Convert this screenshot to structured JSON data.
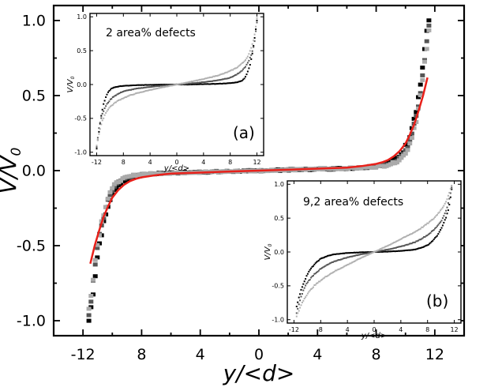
{
  "chart_data": [
    {
      "id": "main",
      "type": "scatter",
      "title": "",
      "xlabel": "y/<d>",
      "ylabel_main": "V/V",
      "ylabel_sub": "0",
      "xlim": [
        -14,
        14
      ],
      "ylim": [
        -1.1,
        1.1
      ],
      "xticks": [
        -12,
        -8,
        -4,
        0,
        4,
        8,
        12
      ],
      "xtick_labels": [
        "-12",
        "8",
        "4",
        "0",
        "4",
        "8",
        "12"
      ],
      "yticks": [
        1.0,
        0.5,
        0.0,
        -0.5,
        -1.0
      ],
      "ytick_labels": [
        "1.0",
        "0.5",
        "0.0",
        "-0.5",
        "-1.0"
      ],
      "series": [
        {
          "name": "black",
          "color": "#000000",
          "noise": 0.035,
          "x": [
            -11.6,
            -11.4,
            -11.2,
            -11.0,
            -10.8,
            -10.5,
            -10.2,
            -9.8,
            -9.4,
            -9.0,
            -8.5,
            -8.0,
            -7.0,
            -6.0,
            -4.0,
            -2.0,
            0.0,
            2.0,
            4.0,
            6.0,
            7.0,
            8.0,
            8.5,
            9.0,
            9.4,
            9.8,
            10.2,
            10.5,
            10.8,
            11.0,
            11.2,
            11.4,
            11.6
          ],
          "y": [
            -1.0,
            -0.88,
            -0.72,
            -0.56,
            -0.44,
            -0.32,
            -0.2,
            -0.12,
            -0.08,
            -0.06,
            -0.04,
            -0.03,
            -0.02,
            -0.015,
            -0.01,
            -0.005,
            0.0,
            0.005,
            0.01,
            0.015,
            0.02,
            0.03,
            0.04,
            0.06,
            0.08,
            0.12,
            0.2,
            0.32,
            0.44,
            0.56,
            0.72,
            0.88,
            1.0
          ]
        },
        {
          "name": "dark gray",
          "color": "#555555",
          "noise": 0.03,
          "x": [
            -11.6,
            -11.4,
            -11.2,
            -11.0,
            -10.8,
            -10.5,
            -10.2,
            -9.8,
            -9.4,
            -9.0,
            -8.5,
            -8.0,
            -7.0,
            -6.0,
            -4.0,
            -2.0,
            0.0,
            2.0,
            4.0,
            6.0,
            7.0,
            8.0,
            8.5,
            9.0,
            9.4,
            9.8,
            10.2,
            10.5,
            10.8,
            11.0,
            11.2,
            11.4,
            11.6
          ],
          "y": [
            -0.96,
            -0.82,
            -0.66,
            -0.5,
            -0.4,
            -0.28,
            -0.17,
            -0.1,
            -0.065,
            -0.05,
            -0.035,
            -0.025,
            -0.02,
            -0.015,
            -0.01,
            -0.005,
            0.0,
            0.005,
            0.01,
            0.015,
            0.02,
            0.03,
            0.035,
            0.05,
            0.065,
            0.1,
            0.17,
            0.28,
            0.4,
            0.5,
            0.66,
            0.82,
            0.96
          ]
        },
        {
          "name": "light gray",
          "color": "#aaaaaa",
          "noise": 0.03,
          "x": [
            -11.6,
            -11.4,
            -11.2,
            -11.0,
            -10.8,
            -10.5,
            -10.2,
            -9.8,
            -9.4,
            -9.0,
            -8.5,
            -8.0,
            -7.0,
            -6.0,
            -4.0,
            -2.0,
            0.0,
            2.0,
            4.0,
            6.0,
            7.0,
            8.0,
            8.5,
            9.0,
            9.4,
            9.8,
            10.2,
            10.5,
            10.8,
            11.0,
            11.2,
            11.4,
            11.6
          ],
          "y": [
            -0.92,
            -0.78,
            -0.62,
            -0.48,
            -0.37,
            -0.25,
            -0.15,
            -0.09,
            -0.06,
            -0.045,
            -0.03,
            -0.025,
            -0.02,
            -0.015,
            -0.01,
            -0.005,
            0.0,
            0.005,
            0.01,
            0.015,
            0.02,
            0.025,
            0.03,
            0.045,
            0.06,
            0.09,
            0.15,
            0.25,
            0.37,
            0.48,
            0.62,
            0.78,
            0.92
          ]
        },
        {
          "name": "fit",
          "color": "#e8201a",
          "kind": "line",
          "x": [
            -11.5,
            -11.2,
            -10.9,
            -10.6,
            -10.3,
            -10.0,
            -9.6,
            -9.2,
            -8.8,
            -8.4,
            -8.0,
            -7.0,
            -6.0,
            -4.0,
            -2.0,
            0.0,
            2.0,
            4.0,
            6.0,
            7.0,
            8.0,
            8.4,
            8.8,
            9.2,
            9.6,
            10.0,
            10.3,
            10.6,
            10.9,
            11.2,
            11.5
          ],
          "y": [
            -0.62,
            -0.5,
            -0.4,
            -0.31,
            -0.24,
            -0.18,
            -0.13,
            -0.095,
            -0.07,
            -0.055,
            -0.045,
            -0.03,
            -0.02,
            -0.013,
            -0.006,
            0.0,
            0.006,
            0.013,
            0.02,
            0.03,
            0.045,
            0.055,
            0.07,
            0.095,
            0.13,
            0.18,
            0.24,
            0.31,
            0.4,
            0.5,
            0.62
          ]
        }
      ]
    },
    {
      "id": "inset-a",
      "type": "scatter",
      "annotation": "2 area% defects",
      "panel_label": "(a)",
      "xlabel": "y/<d>",
      "ylabel_main": "V/V",
      "ylabel_sub": "0",
      "xlim": [
        -13,
        13
      ],
      "ylim": [
        -1.05,
        1.05
      ],
      "xticks": [
        -12,
        -8,
        -4,
        0,
        4,
        8,
        12
      ],
      "xtick_labels": [
        "-12",
        "8",
        "4",
        "0",
        "4",
        "8",
        "12"
      ],
      "yticks": [
        1.0,
        0.5,
        0.0,
        -0.5,
        -1.0
      ],
      "ytick_labels": [
        "1.0",
        "0.5",
        "0.0",
        "-0.5",
        "-1.0"
      ],
      "series": [
        {
          "name": "black",
          "color": "#000000",
          "x": [
            -12.0,
            -11.6,
            -11.3,
            -11.0,
            -10.6,
            -10.2,
            -9.8,
            -9.3,
            -8.8,
            -8.0,
            -7.0,
            -6.0,
            -4.0,
            -2.0,
            0.0,
            2.0,
            4.0,
            6.0,
            7.0,
            8.0,
            8.8,
            9.3,
            9.8,
            10.2,
            10.6,
            11.0,
            11.3,
            11.6,
            12.0
          ],
          "y": [
            -0.95,
            -0.65,
            -0.45,
            -0.3,
            -0.18,
            -0.1,
            -0.06,
            -0.04,
            -0.03,
            -0.02,
            -0.015,
            -0.01,
            -0.005,
            0.0,
            0.0,
            0.0,
            0.005,
            0.01,
            0.015,
            0.02,
            0.03,
            0.04,
            0.06,
            0.1,
            0.18,
            0.3,
            0.45,
            0.65,
            0.95
          ]
        },
        {
          "name": "dark gray",
          "color": "#555555",
          "x": [
            -12.0,
            -11.6,
            -11.2,
            -10.8,
            -10.4,
            -10.0,
            -9.5,
            -9.0,
            -8.0,
            -7.0,
            -6.0,
            -4.0,
            -2.0,
            0.0,
            2.0,
            4.0,
            6.0,
            7.0,
            8.0,
            9.0,
            9.5,
            10.0,
            10.4,
            10.8,
            11.2,
            11.6,
            12.0
          ],
          "y": [
            -0.92,
            -0.6,
            -0.45,
            -0.35,
            -0.28,
            -0.23,
            -0.18,
            -0.15,
            -0.1,
            -0.08,
            -0.06,
            -0.035,
            -0.015,
            0.0,
            0.015,
            0.035,
            0.06,
            0.08,
            0.1,
            0.15,
            0.18,
            0.23,
            0.28,
            0.35,
            0.45,
            0.6,
            0.92
          ]
        },
        {
          "name": "light gray",
          "color": "#b0b0b0",
          "x": [
            -12.0,
            -11.6,
            -11.2,
            -10.8,
            -10.4,
            -10.0,
            -9.0,
            -8.0,
            -7.0,
            -6.0,
            -4.0,
            -2.0,
            0.0,
            2.0,
            4.0,
            6.0,
            7.0,
            8.0,
            9.0,
            10.0,
            10.4,
            10.8,
            11.2,
            11.6,
            12.0
          ],
          "y": [
            -0.9,
            -0.7,
            -0.55,
            -0.45,
            -0.38,
            -0.33,
            -0.25,
            -0.2,
            -0.16,
            -0.13,
            -0.08,
            -0.04,
            0.0,
            0.04,
            0.08,
            0.13,
            0.16,
            0.2,
            0.25,
            0.33,
            0.38,
            0.45,
            0.55,
            0.7,
            0.98
          ]
        }
      ]
    },
    {
      "id": "inset-b",
      "type": "scatter",
      "annotation": "9,2 area% defects",
      "panel_label": "(b)",
      "xlabel": "y/<d>",
      "ylabel_main": "V/V",
      "ylabel_sub": "0",
      "xlim": [
        -13,
        13
      ],
      "ylim": [
        -1.05,
        1.05
      ],
      "xticks": [
        -12,
        -8,
        -4,
        0,
        4,
        8,
        12
      ],
      "xtick_labels": [
        "-12",
        "8",
        "4",
        "0",
        "4",
        "8",
        "12"
      ],
      "yticks": [
        1.0,
        0.5,
        0.0,
        -0.5,
        -1.0
      ],
      "ytick_labels": [
        "1.0",
        "0.5",
        "0.0",
        "-0.5",
        "-1.0"
      ],
      "series": [
        {
          "name": "black",
          "color": "#000000",
          "x": [
            -11.6,
            -11.2,
            -10.8,
            -10.4,
            -10.0,
            -9.5,
            -9.0,
            -8.5,
            -8.0,
            -7.0,
            -6.0,
            -4.0,
            -2.0,
            0.0,
            2.0,
            4.0,
            6.0,
            7.0,
            8.0,
            8.5,
            9.0,
            9.5,
            10.0,
            10.4,
            10.8,
            11.2,
            11.6
          ],
          "y": [
            -0.8,
            -0.65,
            -0.52,
            -0.42,
            -0.33,
            -0.25,
            -0.19,
            -0.14,
            -0.1,
            -0.06,
            -0.035,
            -0.015,
            -0.005,
            0.0,
            0.005,
            0.015,
            0.035,
            0.06,
            0.1,
            0.14,
            0.19,
            0.25,
            0.33,
            0.42,
            0.52,
            0.65,
            0.92
          ]
        },
        {
          "name": "dark gray",
          "color": "#555555",
          "x": [
            -11.6,
            -11.2,
            -10.8,
            -10.4,
            -10.0,
            -9.0,
            -8.0,
            -7.0,
            -6.0,
            -4.0,
            -2.0,
            0.0,
            2.0,
            4.0,
            6.0,
            7.0,
            8.0,
            9.0,
            10.0,
            10.4,
            10.8,
            11.2,
            11.6
          ],
          "y": [
            -0.9,
            -0.75,
            -0.62,
            -0.52,
            -0.45,
            -0.33,
            -0.25,
            -0.19,
            -0.14,
            -0.08,
            -0.035,
            0.0,
            0.035,
            0.08,
            0.14,
            0.19,
            0.25,
            0.33,
            0.45,
            0.52,
            0.62,
            0.75,
            0.95
          ]
        },
        {
          "name": "light gray",
          "color": "#b0b0b0",
          "x": [
            -11.6,
            -11.2,
            -10.8,
            -10.4,
            -10.0,
            -9.0,
            -8.0,
            -7.0,
            -6.0,
            -4.0,
            -2.0,
            0.0,
            2.0,
            4.0,
            6.0,
            7.0,
            8.0,
            9.0,
            10.0,
            10.4,
            10.8,
            11.2,
            11.6
          ],
          "y": [
            -0.95,
            -0.85,
            -0.75,
            -0.68,
            -0.62,
            -0.5,
            -0.42,
            -0.35,
            -0.29,
            -0.19,
            -0.09,
            0.0,
            0.09,
            0.19,
            0.29,
            0.35,
            0.42,
            0.5,
            0.62,
            0.68,
            0.75,
            0.85,
            0.98
          ]
        }
      ]
    }
  ]
}
